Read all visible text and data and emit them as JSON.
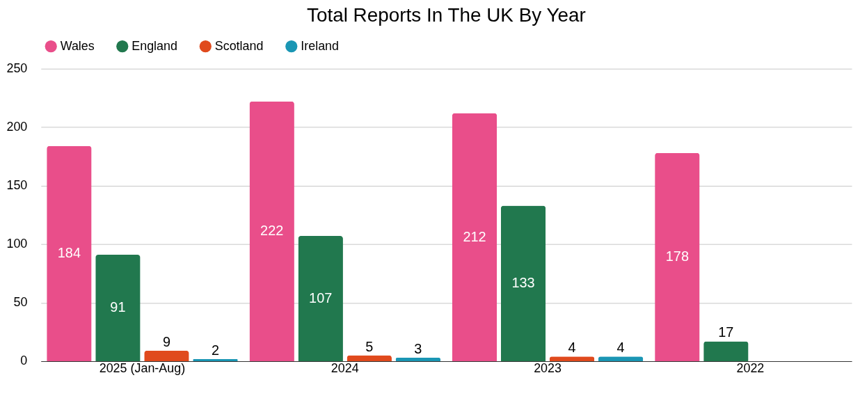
{
  "chart_data": {
    "type": "bar",
    "title": "Total Reports In The UK By Year",
    "categories": [
      "2025 (Jan-Aug)",
      "2024",
      "2023",
      "2022"
    ],
    "series": [
      {
        "name": "Wales",
        "color": "#e94e8a",
        "values": [
          184,
          222,
          212,
          178
        ]
      },
      {
        "name": "England",
        "color": "#21784e",
        "values": [
          91,
          107,
          133,
          17
        ]
      },
      {
        "name": "Scotland",
        "color": "#e04a1d",
        "values": [
          9,
          5,
          4,
          null
        ]
      },
      {
        "name": "Ireland",
        "color": "#1a96b4",
        "values": [
          2,
          3,
          4,
          null
        ]
      }
    ],
    "ylim": [
      0,
      250
    ],
    "yticks": [
      0,
      50,
      100,
      150,
      200,
      250
    ],
    "grid": "y",
    "legend": "top",
    "data_labels": true
  }
}
